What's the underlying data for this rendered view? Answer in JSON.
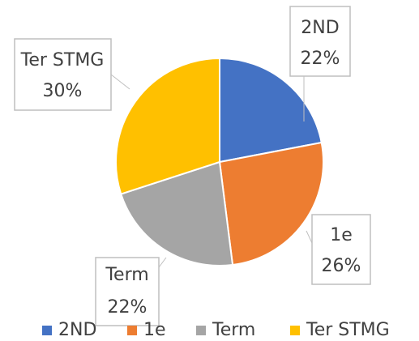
{
  "chart_data": {
    "type": "pie",
    "categories": [
      "2ND",
      "1e",
      "Term",
      "Ter STMG"
    ],
    "values": [
      22,
      26,
      22,
      30
    ],
    "value_labels": [
      "22%",
      "26%",
      "22%",
      "30%"
    ],
    "colors": [
      "#4472c4",
      "#ed7d31",
      "#a5a5a5",
      "#ffc000"
    ],
    "legend": "bottom"
  }
}
